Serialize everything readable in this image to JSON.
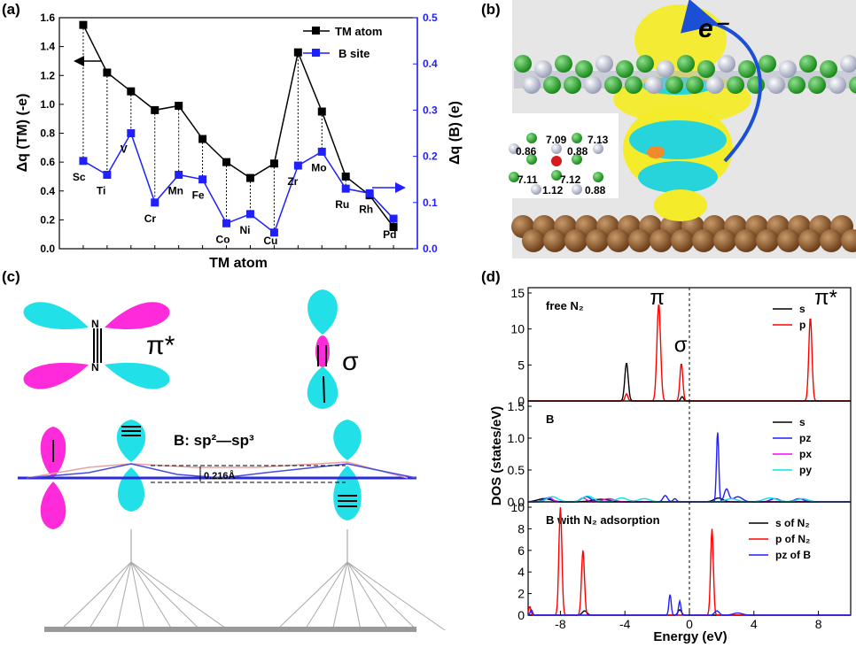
{
  "panel_labels": {
    "a": "(a)",
    "b": "(b)",
    "c": "(c)",
    "d": "(d)"
  },
  "colors": {
    "tm": "#000000",
    "b_site": "#1f1fff",
    "s": "#000000",
    "p": "#ff0000",
    "pz": "#1f1fff",
    "px": "#ff00ff",
    "py": "#00e5e5",
    "cyan_lobe": "#22e0e8",
    "magenta_lobe": "#ff2ad9"
  },
  "chart_data": [
    {
      "type": "line",
      "panel": "a",
      "xlabel": "TM atom",
      "ylabel_left": "Δq (TM) (-e)",
      "ylabel_right": "Δq (B) (e)",
      "ylim_left": [
        0.0,
        1.6
      ],
      "ylim_right": [
        0.0,
        0.5
      ],
      "yticks_left": [
        "0.0",
        "0.2",
        "0.4",
        "0.6",
        "0.8",
        "1.0",
        "1.2",
        "1.4",
        "1.6"
      ],
      "yticks_right": [
        "0.0",
        "0.1",
        "0.2",
        "0.3",
        "0.4",
        "0.5"
      ],
      "categories": [
        "Sc",
        "Ti",
        "V",
        "Cr",
        "Mn",
        "Fe",
        "Co",
        "Ni",
        "Cu",
        "Zr",
        "Mo",
        "Ru",
        "Rh",
        "Pd"
      ],
      "legend_position": "top-right",
      "series": [
        {
          "name": "TM atom",
          "axis": "left",
          "marker": "square",
          "values": [
            1.55,
            1.22,
            1.09,
            0.96,
            0.99,
            0.76,
            0.6,
            0.49,
            0.59,
            1.36,
            0.95,
            0.5,
            0.37,
            0.15
          ]
        },
        {
          "name": "B site",
          "axis": "right",
          "marker": "square",
          "values": [
            0.19,
            0.16,
            0.25,
            0.1,
            0.16,
            0.15,
            0.055,
            0.075,
            0.035,
            0.18,
            0.21,
            0.13,
            0.12,
            0.065
          ]
        }
      ]
    },
    {
      "type": "line",
      "panel": "d",
      "xlabel": "Energy (eV)",
      "ylabel": "DOS (states/eV)",
      "xlim": [
        -10,
        10
      ],
      "xticks": [
        "-8",
        "-4",
        "0",
        "4",
        "8"
      ],
      "subplots": [
        {
          "label": "free N₂",
          "ylim": [
            0,
            15
          ],
          "yticks": [
            "0",
            "5",
            "10",
            "15"
          ],
          "legend": [
            "s",
            "p"
          ],
          "annotations": [
            {
              "text": "π",
              "x": -1.9,
              "y": 13.4
            },
            {
              "text": "σ",
              "x": -0.4,
              "y": 6.8
            },
            {
              "text": "π*",
              "x": 8.3,
              "y": 13.4
            }
          ],
          "series": [
            {
              "name": "s",
              "peaks": [
                {
                  "x": -3.9,
                  "h": 5.3,
                  "w": 0.15
                },
                {
                  "x": -0.45,
                  "h": 0.6,
                  "w": 0.12
                }
              ]
            },
            {
              "name": "p",
              "peaks": [
                {
                  "x": -3.9,
                  "h": 1.0,
                  "w": 0.12
                },
                {
                  "x": -1.9,
                  "h": 13.5,
                  "w": 0.16
                },
                {
                  "x": -0.5,
                  "h": 5.2,
                  "w": 0.13
                },
                {
                  "x": 7.5,
                  "h": 11.6,
                  "w": 0.14
                }
              ]
            }
          ]
        },
        {
          "label": "B",
          "ylim": [
            0,
            1.5
          ],
          "yticks": [
            "0.0",
            "0.5",
            "1.0",
            "1.5"
          ],
          "legend": [
            "s",
            "pz",
            "px",
            "py"
          ],
          "series": [
            {
              "name": "s",
              "peaks": [
                {
                  "x": -9.0,
                  "h": 0.05,
                  "w": 0.6
                },
                {
                  "x": -5.5,
                  "h": 0.04,
                  "w": 0.8
                },
                {
                  "x": 1.8,
                  "h": 0.06,
                  "w": 0.4
                }
              ]
            },
            {
              "name": "pz",
              "peaks": [
                {
                  "x": -8.8,
                  "h": 0.06,
                  "w": 0.4
                },
                {
                  "x": -6.4,
                  "h": 0.08,
                  "w": 0.4
                },
                {
                  "x": -1.5,
                  "h": 0.1,
                  "w": 0.2
                },
                {
                  "x": -0.9,
                  "h": 0.05,
                  "w": 0.15
                },
                {
                  "x": 1.75,
                  "h": 1.1,
                  "w": 0.1
                },
                {
                  "x": 2.3,
                  "h": 0.2,
                  "w": 0.2
                },
                {
                  "x": 3.0,
                  "h": 0.08,
                  "w": 0.4
                },
                {
                  "x": 5.3,
                  "h": 0.05,
                  "w": 0.4
                },
                {
                  "x": 6.8,
                  "h": 0.05,
                  "w": 0.4
                }
              ]
            },
            {
              "name": "px",
              "peaks": [
                {
                  "x": -8.7,
                  "h": 0.07,
                  "w": 0.3
                },
                {
                  "x": -6.6,
                  "h": 0.06,
                  "w": 0.3
                },
                {
                  "x": -5.0,
                  "h": 0.05,
                  "w": 0.5
                }
              ]
            },
            {
              "name": "py",
              "peaks": [
                {
                  "x": -8.5,
                  "h": 0.08,
                  "w": 0.5
                },
                {
                  "x": -6.3,
                  "h": 0.09,
                  "w": 0.5
                },
                {
                  "x": -4.2,
                  "h": 0.06,
                  "w": 0.5
                },
                {
                  "x": -2.8,
                  "h": 0.05,
                  "w": 0.5
                },
                {
                  "x": 2.6,
                  "h": 0.05,
                  "w": 0.5
                },
                {
                  "x": 5.0,
                  "h": 0.06,
                  "w": 0.6
                },
                {
                  "x": 7.0,
                  "h": 0.05,
                  "w": 0.5
                }
              ]
            }
          ]
        },
        {
          "label": "B with N₂ adsorption",
          "ylim": [
            0,
            10
          ],
          "yticks": [
            "0",
            "2",
            "4",
            "6",
            "8",
            "10"
          ],
          "legend": [
            "s of N₂",
            "p of N₂",
            "pz of B"
          ],
          "series": [
            {
              "name": "s of N₂",
              "peaks": [
                {
                  "x": -6.5,
                  "h": 0.4,
                  "w": 0.2
                },
                {
                  "x": -0.6,
                  "h": 0.5,
                  "w": 0.15
                }
              ]
            },
            {
              "name": "p of N₂",
              "peaks": [
                {
                  "x": -9.9,
                  "h": 0.8,
                  "w": 0.1
                },
                {
                  "x": -8.0,
                  "h": 10.0,
                  "w": 0.13
                },
                {
                  "x": -6.6,
                  "h": 6.0,
                  "w": 0.13
                },
                {
                  "x": 1.4,
                  "h": 8.0,
                  "w": 0.12
                }
              ]
            },
            {
              "name": "pz of B",
              "peaks": [
                {
                  "x": -9.8,
                  "h": 0.5,
                  "w": 0.1
                },
                {
                  "x": -1.2,
                  "h": 1.9,
                  "w": 0.1
                },
                {
                  "x": -0.6,
                  "h": 1.3,
                  "w": 0.1
                },
                {
                  "x": 1.7,
                  "h": 0.4,
                  "w": 0.2
                },
                {
                  "x": 3.0,
                  "h": 0.2,
                  "w": 0.4
                }
              ]
            }
          ]
        }
      ]
    }
  ],
  "panel_b": {
    "electron_label": "e⁻",
    "charge_labels": [
      "7.09",
      "7.13",
      "0.86",
      "0.88",
      "7.11",
      "7.12",
      "1.12",
      "0.88"
    ]
  },
  "panel_c": {
    "n_label": "N",
    "pi_star": "π*",
    "sigma": "σ",
    "hybrid_label": "B: sp²—sp³",
    "distance": "0.216Å"
  }
}
